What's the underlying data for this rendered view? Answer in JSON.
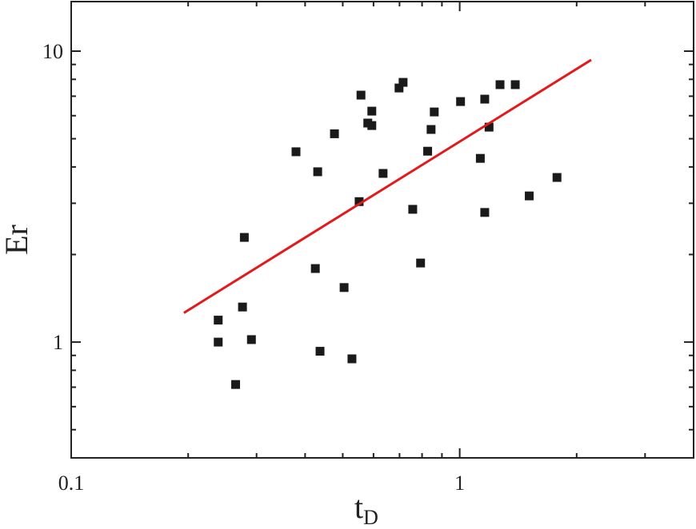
{
  "chart_data": {
    "type": "scatter",
    "x_label": "t",
    "x_label_sub": "D",
    "y_label": "Er",
    "xscale": "log",
    "yscale": "log",
    "xlim": [
      0.1,
      4
    ],
    "ylim": [
      0.4,
      14.8
    ],
    "xticks": [
      0.1,
      1
    ],
    "yticks": [
      1,
      10
    ],
    "xminorticks": [
      0.2,
      0.3,
      0.4,
      0.5,
      0.6,
      0.7,
      0.8,
      0.9,
      2,
      3
    ],
    "yminorticks": [
      0.5,
      0.6,
      0.7,
      0.8,
      0.9,
      2,
      3,
      4,
      5,
      6,
      7,
      8,
      9
    ],
    "series": [
      {
        "color": "#1a1a1a",
        "x": [
          0.239,
          0.239,
          0.265,
          0.276,
          0.279,
          0.291,
          0.379,
          0.425,
          0.431,
          0.437,
          0.476,
          0.504,
          0.528,
          0.551,
          0.557,
          0.58,
          0.594,
          0.594,
          0.635,
          0.698,
          0.715,
          0.757,
          0.793,
          0.827,
          0.844,
          0.86,
          1.005,
          1.13,
          1.16,
          1.16,
          1.19,
          1.27,
          1.39,
          1.51,
          1.78
        ],
        "values": [
          1.19,
          1.0,
          0.715,
          1.32,
          2.29,
          1.02,
          4.51,
          1.79,
          3.85,
          0.93,
          5.2,
          1.54,
          0.876,
          3.04,
          7.06,
          5.66,
          5.55,
          6.22,
          3.8,
          7.47,
          7.81,
          2.86,
          1.87,
          4.53,
          5.38,
          6.18,
          6.71,
          4.28,
          6.84,
          2.79,
          5.48,
          7.67,
          7.67,
          3.18,
          3.68
        ]
      },
      {
        "type": "line",
        "color": "#e31a1c",
        "x": [
          0.195,
          2.18
        ],
        "values": [
          1.26,
          9.33
        ]
      }
    ]
  }
}
